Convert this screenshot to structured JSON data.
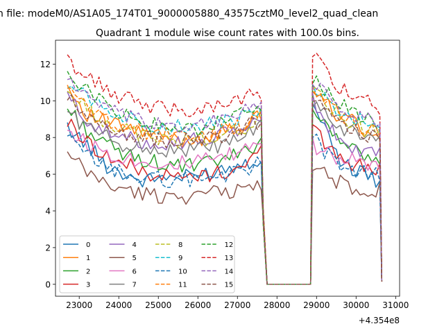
{
  "figure": {
    "suptitle": "n file: modeM0/AS1A05_174T01_9000005880_43575cztM0_level2_quad_clean",
    "x_offset_label": "+4.354e8"
  },
  "chart_data": {
    "type": "line",
    "title": "Quadrant 1 module wise count rates with 100.0s bins.",
    "xlabel": "",
    "ylabel": "",
    "x_offset": 435400000,
    "xlim": [
      22400,
      31100
    ],
    "ylim": [
      -0.65,
      13.3
    ],
    "x_ticks": [
      23000,
      24000,
      25000,
      26000,
      27000,
      28000,
      29000,
      30000,
      31000
    ],
    "x_tick_labels": [
      "23000",
      "24000",
      "25000",
      "26000",
      "27000",
      "28000",
      "29000",
      "30000",
      "31000"
    ],
    "y_ticks": [
      0,
      2,
      4,
      6,
      8,
      10,
      12
    ],
    "y_tick_labels": [
      "0",
      "2",
      "4",
      "6",
      "8",
      "10",
      "12"
    ],
    "grid": false,
    "legend_position": "lower-left",
    "legend_columns": 4,
    "segments": [
      {
        "x_start": 22700,
        "x_end": 27550,
        "step": 100
      },
      {
        "x_start": 28900,
        "x_end": 30550,
        "step": 100
      }
    ],
    "gap": {
      "x": [
        27650,
        27750,
        28750,
        28850
      ],
      "y": [
        3.4,
        0.0,
        0.0,
        0.8
      ]
    },
    "final_drop": {
      "x": 30650,
      "y": 0.15
    },
    "series": [
      {
        "name": "0",
        "color": "#1f77b4",
        "dash": "solid",
        "seg1": [
          8.6,
          7.6,
          6.5,
          6.0,
          5.6,
          5.9,
          5.8,
          6.0,
          6.3,
          6.6,
          6.9
        ],
        "seg2": [
          10.1,
          8.2,
          6.9,
          6.2,
          5.9,
          5.6
        ]
      },
      {
        "name": "1",
        "color": "#ff7f0e",
        "dash": "solid",
        "seg1": [
          10.8,
          9.3,
          8.8,
          8.5,
          8.2,
          8.0,
          7.8,
          8.0,
          8.3,
          8.6,
          9.2
        ],
        "seg2": [
          10.5,
          9.8,
          9.2,
          8.8,
          8.4,
          8.0
        ]
      },
      {
        "name": "2",
        "color": "#2ca02c",
        "dash": "solid",
        "seg1": [
          9.6,
          8.4,
          7.6,
          7.0,
          6.8,
          6.5,
          6.4,
          6.5,
          6.8,
          7.1,
          7.9
        ],
        "seg2": [
          9.6,
          8.6,
          7.8,
          7.3,
          7.0,
          6.8
        ]
      },
      {
        "name": "3",
        "color": "#d62728",
        "dash": "solid",
        "seg1": [
          8.8,
          7.8,
          7.0,
          6.5,
          6.1,
          5.9,
          5.8,
          5.9,
          6.1,
          6.4,
          7.3
        ],
        "seg2": [
          8.7,
          7.4,
          6.8,
          6.5,
          6.3,
          6.3
        ]
      },
      {
        "name": "4",
        "color": "#9467bd",
        "dash": "solid",
        "seg1": [
          10.2,
          9.0,
          8.3,
          7.9,
          7.8,
          7.7,
          7.8,
          7.9,
          8.1,
          8.5,
          9.0
        ],
        "seg2": [
          10.2,
          8.6,
          7.9,
          7.5,
          7.2,
          7.0
        ]
      },
      {
        "name": "5",
        "color": "#8c564b",
        "dash": "solid",
        "seg1": [
          7.0,
          6.1,
          5.5,
          5.1,
          4.9,
          4.8,
          4.8,
          4.9,
          5.0,
          5.2,
          5.4
        ],
        "seg2": [
          6.4,
          5.9,
          5.6,
          5.3,
          5.2,
          5.2
        ]
      },
      {
        "name": "6",
        "color": "#e377c2",
        "dash": "solid",
        "seg1": [
          8.4,
          7.7,
          7.2,
          6.9,
          6.7,
          6.6,
          6.6,
          6.7,
          6.9,
          7.2,
          7.9
        ],
        "seg2": [
          7.6,
          7.2,
          6.9,
          6.7,
          6.5,
          6.4
        ]
      },
      {
        "name": "7",
        "color": "#7f7f7f",
        "dash": "solid",
        "seg1": [
          9.4,
          8.6,
          8.0,
          7.6,
          7.4,
          7.3,
          7.3,
          7.4,
          7.6,
          7.9,
          8.6
        ],
        "seg2": [
          10.0,
          9.1,
          8.6,
          8.3,
          8.0,
          7.8
        ]
      },
      {
        "name": "8",
        "color": "#bcbd22",
        "dash": "dashed",
        "seg1": [
          10.5,
          9.5,
          8.9,
          8.4,
          8.1,
          7.9,
          7.8,
          7.9,
          8.1,
          8.5,
          9.1
        ],
        "seg2": [
          10.8,
          9.8,
          9.2,
          8.7,
          8.4,
          8.2
        ]
      },
      {
        "name": "9",
        "color": "#17becf",
        "dash": "dashed",
        "seg1": [
          11.1,
          10.2,
          9.6,
          9.1,
          8.8,
          8.6,
          8.5,
          8.6,
          8.8,
          9.1,
          9.6
        ],
        "seg2": [
          11.0,
          10.2,
          9.5,
          9.1,
          8.8,
          8.5
        ]
      },
      {
        "name": "10",
        "color": "#1f77b4",
        "dash": "dashed",
        "seg1": [
          8.0,
          7.0,
          6.4,
          6.0,
          5.8,
          5.7,
          5.7,
          5.8,
          5.9,
          6.1,
          6.6
        ],
        "seg2": [
          8.0,
          7.1,
          6.6,
          6.3,
          6.1,
          5.9
        ]
      },
      {
        "name": "11",
        "color": "#ff7f0e",
        "dash": "dashed",
        "seg1": [
          10.6,
          9.6,
          9.0,
          8.6,
          8.3,
          8.1,
          8.0,
          8.1,
          8.3,
          8.6,
          9.2
        ],
        "seg2": [
          10.6,
          9.8,
          9.2,
          8.8,
          8.5,
          8.2
        ]
      },
      {
        "name": "12",
        "color": "#2ca02c",
        "dash": "dashed",
        "seg1": [
          11.7,
          10.6,
          9.8,
          9.2,
          8.8,
          8.5,
          8.4,
          8.5,
          8.8,
          9.2,
          9.9
        ],
        "seg2": [
          11.3,
          10.4,
          9.8,
          9.3,
          9.0,
          8.8
        ]
      },
      {
        "name": "13",
        "color": "#d62728",
        "dash": "dashed",
        "seg1": [
          12.2,
          11.3,
          10.6,
          10.1,
          9.8,
          9.6,
          9.5,
          9.6,
          9.8,
          10.1,
          10.4
        ],
        "seg2": [
          12.6,
          11.5,
          10.8,
          10.3,
          10.0,
          9.7
        ]
      },
      {
        "name": "14",
        "color": "#9467bd",
        "dash": "dashed",
        "seg1": [
          11.3,
          10.2,
          9.5,
          9.1,
          8.8,
          8.7,
          8.6,
          8.8,
          9.0,
          9.3,
          9.7
        ],
        "seg2": [
          11.2,
          10.2,
          9.7,
          9.3,
          9.0,
          8.8
        ]
      },
      {
        "name": "15",
        "color": "#8c564b",
        "dash": "dashed",
        "seg1": [
          10.1,
          9.2,
          8.6,
          8.2,
          8.0,
          7.8,
          7.8,
          7.9,
          8.1,
          8.4,
          9.0
        ],
        "seg2": [
          10.4,
          9.3,
          8.8,
          8.4,
          8.1,
          7.9
        ]
      }
    ]
  }
}
